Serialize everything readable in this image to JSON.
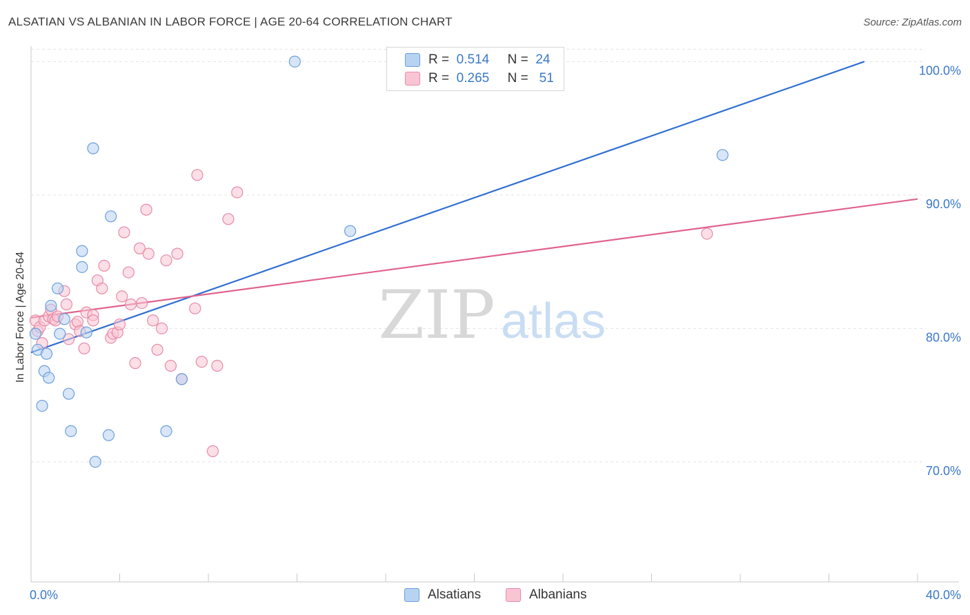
{
  "title": "ALSATIAN VS ALBANIAN IN LABOR FORCE | AGE 20-64 CORRELATION CHART",
  "source": "Source: ZipAtlas.com",
  "watermark": {
    "zip": "ZIP",
    "atlas": "atlas"
  },
  "legend_top": {
    "rows": [
      {
        "r_label": "R =",
        "r_value": "0.514",
        "n_label": "N =",
        "n_value": "24"
      },
      {
        "r_label": "R =",
        "r_value": "0.265",
        "n_label": "N =",
        "n_value": "51"
      }
    ]
  },
  "legend_bottom": {
    "items": [
      "Alsatians",
      "Albanians"
    ]
  },
  "colors": {
    "blue_fill": "#b8d2f2",
    "blue_stroke": "#6a9fd9",
    "blue_line": "#2f6fd0",
    "pink_fill": "#f9c5d4",
    "pink_stroke": "#e68aa8",
    "pink_line": "#e0628c",
    "grid": "#e3e3e3",
    "tick_label": "#3a78c9"
  },
  "chart_data": {
    "type": "scatter",
    "title": "ALSATIAN VS ALBANIAN IN LABOR FORCE | AGE 20-64 CORRELATION CHART",
    "xlabel": "",
    "ylabel": "In Labor Force | Age 20-64",
    "xlim": [
      0,
      40
    ],
    "ylim": [
      61,
      101
    ],
    "x_tick_labels": [
      "0.0%",
      "40.0%"
    ],
    "y_ticks": [
      70,
      80,
      90,
      100
    ],
    "y_tick_labels": [
      "70.0%",
      "80.0%",
      "90.0%",
      "100.0%"
    ],
    "series": [
      {
        "name": "Alsatians",
        "points": [
          [
            0.2,
            79.6
          ],
          [
            0.3,
            78.4
          ],
          [
            0.5,
            74.2
          ],
          [
            0.6,
            76.8
          ],
          [
            0.7,
            78.1
          ],
          [
            0.8,
            76.3
          ],
          [
            0.9,
            81.7
          ],
          [
            1.2,
            83.0
          ],
          [
            1.3,
            79.6
          ],
          [
            1.5,
            80.7
          ],
          [
            1.7,
            75.1
          ],
          [
            1.8,
            72.3
          ],
          [
            2.3,
            84.6
          ],
          [
            2.3,
            85.8
          ],
          [
            2.5,
            79.7
          ],
          [
            2.8,
            93.5
          ],
          [
            2.9,
            70.0
          ],
          [
            3.5,
            72.0
          ],
          [
            3.6,
            88.4
          ],
          [
            6.1,
            72.3
          ],
          [
            6.8,
            76.2
          ],
          [
            11.9,
            100.0
          ],
          [
            14.4,
            87.3
          ],
          [
            31.2,
            93.0
          ]
        ],
        "trend": {
          "x": [
            0,
            37.6
          ],
          "y": [
            78.2,
            100.0
          ]
        }
      },
      {
        "name": "Albanians",
        "points": [
          [
            0.2,
            80.6
          ],
          [
            0.3,
            79.8
          ],
          [
            0.4,
            80.1
          ],
          [
            0.5,
            78.9
          ],
          [
            0.6,
            80.6
          ],
          [
            0.8,
            80.9
          ],
          [
            0.9,
            81.4
          ],
          [
            1.0,
            80.7
          ],
          [
            1.1,
            80.6
          ],
          [
            1.2,
            80.9
          ],
          [
            1.5,
            82.8
          ],
          [
            1.6,
            81.8
          ],
          [
            1.7,
            79.2
          ],
          [
            2.0,
            80.3
          ],
          [
            2.1,
            80.5
          ],
          [
            2.2,
            79.8
          ],
          [
            2.4,
            78.5
          ],
          [
            2.5,
            81.2
          ],
          [
            2.8,
            81.0
          ],
          [
            2.8,
            80.6
          ],
          [
            3.0,
            83.6
          ],
          [
            3.2,
            83.0
          ],
          [
            3.3,
            84.7
          ],
          [
            3.6,
            79.3
          ],
          [
            3.7,
            79.6
          ],
          [
            3.9,
            79.7
          ],
          [
            4.0,
            80.3
          ],
          [
            4.1,
            82.4
          ],
          [
            4.2,
            87.2
          ],
          [
            4.4,
            84.2
          ],
          [
            4.5,
            81.8
          ],
          [
            4.7,
            77.4
          ],
          [
            4.9,
            86.0
          ],
          [
            5.0,
            81.9
          ],
          [
            5.2,
            88.9
          ],
          [
            5.3,
            85.6
          ],
          [
            5.5,
            80.6
          ],
          [
            5.7,
            78.4
          ],
          [
            5.9,
            80.0
          ],
          [
            6.1,
            85.1
          ],
          [
            6.3,
            77.2
          ],
          [
            6.6,
            85.6
          ],
          [
            6.8,
            76.2
          ],
          [
            7.4,
            81.5
          ],
          [
            7.5,
            91.5
          ],
          [
            7.7,
            77.5
          ],
          [
            8.2,
            70.8
          ],
          [
            8.4,
            77.2
          ],
          [
            8.9,
            88.2
          ],
          [
            9.3,
            90.2
          ],
          [
            30.5,
            87.1
          ]
        ],
        "trend": {
          "x": [
            0,
            40
          ],
          "y": [
            80.8,
            89.7
          ]
        }
      }
    ]
  }
}
